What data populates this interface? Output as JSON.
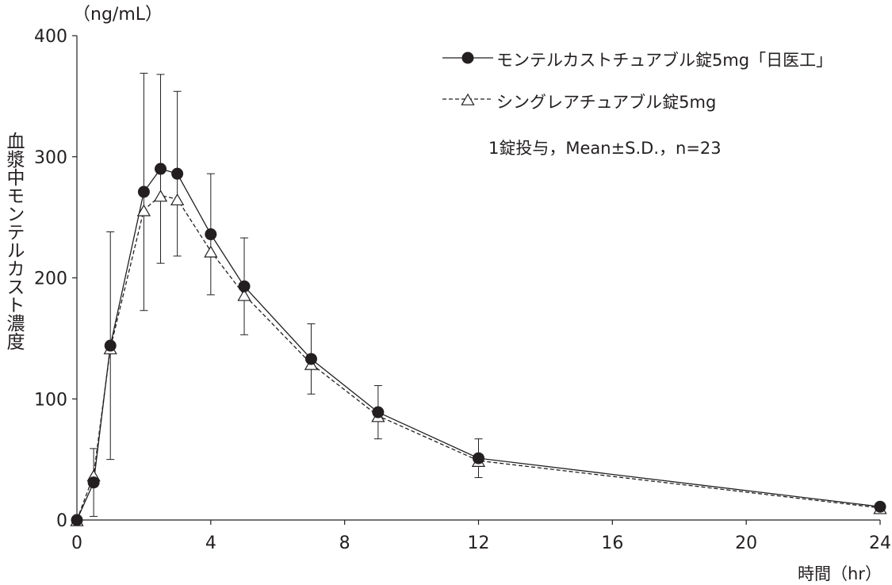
{
  "chart_data": {
    "type": "line",
    "ylabel": "血漿中モンテルカスト濃度",
    "yunit": "（ng/mL）",
    "xlabel": "時間（hr）",
    "xlim": [
      0,
      24
    ],
    "ylim": [
      0,
      400
    ],
    "xticks": [
      0,
      4,
      8,
      12,
      16,
      20,
      24
    ],
    "yticks": [
      0,
      100,
      200,
      300,
      400
    ],
    "grid": false,
    "legend_position": "top-right",
    "note": "1錠投与，Mean±S.D.，n=23",
    "series": [
      {
        "name": "モンテルカストチュアブル錠5mg「日医工」",
        "marker": "filled-circle",
        "line": "solid",
        "color": "#231f20",
        "x": [
          0,
          0.5,
          1,
          2,
          2.5,
          3,
          4,
          5,
          7,
          9,
          12,
          24
        ],
        "y": [
          0,
          31,
          144,
          271,
          290,
          286,
          236,
          193,
          133,
          89,
          51,
          11
        ],
        "sd": [
          0,
          28,
          94,
          98,
          78,
          68,
          50,
          40,
          29,
          22,
          16,
          3
        ]
      },
      {
        "name": "シングレアチュアブル錠5mg",
        "marker": "open-triangle",
        "line": "dashed",
        "color": "#231f20",
        "x": [
          0,
          0.5,
          1,
          2,
          2.5,
          3,
          4,
          5,
          7,
          9,
          12,
          24
        ],
        "y": [
          0,
          37,
          142,
          256,
          268,
          265,
          222,
          186,
          129,
          86,
          49,
          10
        ],
        "sd": [
          0,
          0,
          0,
          0,
          0,
          0,
          0,
          0,
          0,
          0,
          0,
          0
        ]
      }
    ]
  }
}
